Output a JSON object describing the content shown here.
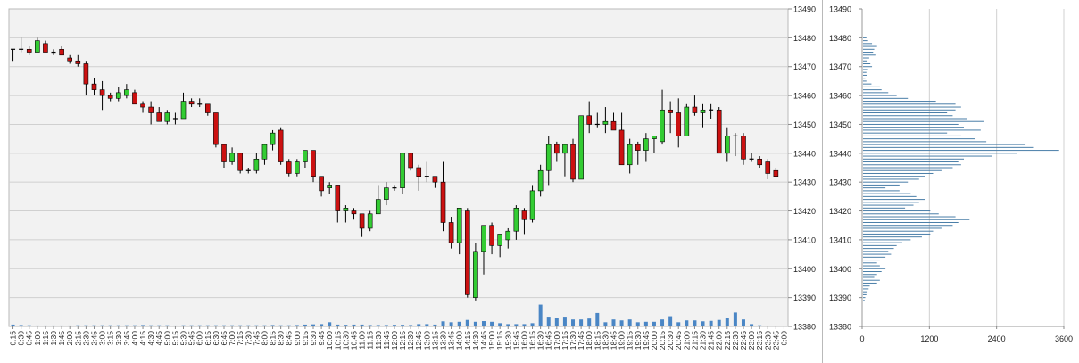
{
  "chart_data": [
    {
      "type": "candlestick",
      "ylim": [
        13380,
        13490
      ],
      "y_ticks": [
        "13490",
        "13480",
        "13470",
        "13460",
        "13450",
        "13440",
        "13430",
        "13420",
        "13410",
        "13400",
        "13390",
        "13380"
      ],
      "x_labels": [
        "0:15",
        "0:30",
        "0:45",
        "1:00",
        "1:15",
        "1:30",
        "1:45",
        "2:00",
        "2:15",
        "2:30",
        "2:45",
        "3:00",
        "3:15",
        "3:30",
        "3:45",
        "4:00",
        "4:15",
        "4:30",
        "4:45",
        "5:00",
        "5:15",
        "5:30",
        "5:45",
        "6:00",
        "6:15",
        "6:30",
        "6:45",
        "7:00",
        "7:15",
        "7:30",
        "7:45",
        "8:00",
        "8:15",
        "8:30",
        "8:45",
        "9:00",
        "9:15",
        "9:30",
        "9:45",
        "10:00",
        "10:15",
        "10:30",
        "10:45",
        "11:00",
        "11:15",
        "11:30",
        "11:45",
        "12:00",
        "12:15",
        "12:30",
        "12:45",
        "13:00",
        "13:15",
        "13:30",
        "13:45",
        "14:00",
        "14:15",
        "14:30",
        "14:45",
        "15:00",
        "15:15",
        "15:30",
        "15:45",
        "16:00",
        "16:15",
        "16:30",
        "16:45",
        "17:00",
        "17:15",
        "17:30",
        "17:45",
        "18:00",
        "18:15",
        "18:30",
        "18:45",
        "19:00",
        "19:15",
        "19:30",
        "19:45",
        "20:00",
        "20:15",
        "20:30",
        "20:45",
        "21:00",
        "21:15",
        "21:30",
        "21:45",
        "22:00",
        "22:15",
        "22:30",
        "22:45",
        "23:00",
        "23:15",
        "23:30",
        "23:45",
        "0:00"
      ],
      "candles": [
        [
          13476,
          13476,
          13472,
          13476
        ],
        [
          13476,
          13480,
          13475,
          13476
        ],
        [
          13476,
          13477,
          13474,
          13475
        ],
        [
          13475,
          13480,
          13475,
          13479
        ],
        [
          13478,
          13479,
          13476,
          13475
        ],
        [
          13475,
          13476,
          13474,
          13475
        ],
        [
          13476,
          13477,
          13474,
          13474
        ],
        [
          13473,
          13474,
          13471,
          13472
        ],
        [
          13472,
          13474,
          13470,
          13471
        ],
        [
          13471,
          13472,
          13460,
          13464
        ],
        [
          13464,
          13466,
          13460,
          13462
        ],
        [
          13462,
          13465,
          13455,
          13460
        ],
        [
          13460,
          13461,
          13458,
          13459
        ],
        [
          13459,
          13463,
          13458,
          13461
        ],
        [
          13460,
          13464,
          13459,
          13462
        ],
        [
          13461,
          13462,
          13457,
          13457
        ],
        [
          13457,
          13458,
          13454,
          13456
        ],
        [
          13456,
          13458,
          13450,
          13454
        ],
        [
          13454,
          13456,
          13451,
          13451
        ],
        [
          13451,
          13455,
          13450,
          13454
        ],
        [
          13452,
          13454,
          13450,
          13452
        ],
        [
          13452,
          13461,
          13452,
          13458
        ],
        [
          13458,
          13459,
          13456,
          13457
        ],
        [
          13457,
          13459,
          13456,
          13457
        ],
        [
          13457,
          13457,
          13453,
          13454
        ],
        [
          13454,
          13454,
          13442,
          13443
        ],
        [
          13443,
          13443,
          13435,
          13437
        ],
        [
          13437,
          13442,
          13436,
          13440
        ],
        [
          13440,
          13440,
          13433,
          13434
        ],
        [
          13434,
          13435,
          13433,
          13434
        ],
        [
          13434,
          13440,
          13433,
          13438
        ],
        [
          13438,
          13443,
          13436,
          13443
        ],
        [
          13443,
          13448,
          13441,
          13447
        ],
        [
          13448,
          13449,
          13436,
          13437
        ],
        [
          13437,
          13438,
          13432,
          13433
        ],
        [
          13433,
          13438,
          13432,
          13437
        ],
        [
          13437,
          13441,
          13435,
          13441
        ],
        [
          13441,
          13441,
          13430,
          13432
        ],
        [
          13432,
          13432,
          13425,
          13427
        ],
        [
          13428,
          13430,
          13426,
          13429
        ],
        [
          13429,
          13429,
          13416,
          13420
        ],
        [
          13420,
          13422,
          13416,
          13421
        ],
        [
          13420,
          13421,
          13417,
          13419
        ],
        [
          13419,
          13419,
          13411,
          13414
        ],
        [
          13414,
          13420,
          13413,
          13419
        ],
        [
          13419,
          13429,
          13419,
          13424
        ],
        [
          13424,
          13430,
          13422,
          13428
        ],
        [
          13428,
          13429,
          13427,
          13428
        ],
        [
          13428,
          13440,
          13426,
          13440
        ],
        [
          13440,
          13440,
          13434,
          13435
        ],
        [
          13435,
          13436,
          13427,
          13432
        ],
        [
          13432,
          13437,
          13430,
          13432
        ],
        [
          13432,
          13432,
          13428,
          13430
        ],
        [
          13430,
          13437,
          13413,
          13416
        ],
        [
          13416,
          13418,
          13407,
          13409
        ],
        [
          13409,
          13421,
          13405,
          13421
        ],
        [
          13420,
          13421,
          13390,
          13391
        ],
        [
          13390,
          13409,
          13389,
          13406
        ],
        [
          13406,
          13415,
          13398,
          13415
        ],
        [
          13415,
          13416,
          13405,
          13408
        ],
        [
          13408,
          13411,
          13404,
          13412
        ],
        [
          13410,
          13414,
          13407,
          13413
        ],
        [
          13413,
          13422,
          13410,
          13421
        ],
        [
          13420,
          13421,
          13412,
          13417
        ],
        [
          13417,
          13429,
          13416,
          13427
        ],
        [
          13427,
          13436,
          13425,
          13434
        ],
        [
          13434,
          13446,
          13429,
          13443
        ],
        [
          13443,
          13444,
          13437,
          13440
        ],
        [
          13440,
          13443,
          13432,
          13443
        ],
        [
          13443,
          13445,
          13430,
          13431
        ],
        [
          13431,
          13453,
          13431,
          13453
        ],
        [
          13453,
          13458,
          13447,
          13450
        ],
        [
          13450,
          13454,
          13449,
          13450
        ],
        [
          13450,
          13456,
          13447,
          13451
        ],
        [
          13451,
          13454,
          13449,
          13448
        ],
        [
          13448,
          13454,
          13437,
          13436
        ],
        [
          13436,
          13445,
          13433,
          13443
        ],
        [
          13443,
          13444,
          13436,
          13441
        ],
        [
          13441,
          13447,
          13437,
          13445
        ],
        [
          13445,
          13446,
          13440,
          13446
        ],
        [
          13444,
          13462,
          13443,
          13455
        ],
        [
          13455,
          13458,
          13447,
          13454
        ],
        [
          13454,
          13459,
          13442,
          13446
        ],
        [
          13446,
          13457,
          13446,
          13456
        ],
        [
          13456,
          13460,
          13453,
          13454
        ],
        [
          13454,
          13457,
          13449,
          13455
        ],
        [
          13455,
          13457,
          13452,
          13455
        ],
        [
          13455,
          13456,
          13440,
          13440
        ],
        [
          13440,
          13449,
          13437,
          13446
        ],
        [
          13446,
          13447,
          13439,
          13446
        ],
        [
          13446,
          13447,
          13436,
          13438
        ],
        [
          13438,
          13440,
          13437,
          13438
        ],
        [
          13438,
          13439,
          13435,
          13436
        ],
        [
          13437,
          13438,
          13431,
          13433
        ],
        [
          13434,
          13435,
          13432,
          13432
        ]
      ],
      "volume": [
        0,
        0,
        0,
        0,
        0,
        0,
        0,
        0,
        0,
        0,
        0,
        0,
        0,
        0,
        0,
        0,
        0,
        0,
        0,
        0,
        0,
        0,
        0,
        0,
        0,
        0,
        0,
        0,
        0,
        0,
        0,
        0,
        0,
        0,
        0,
        0,
        0,
        0,
        0,
        0,
        0,
        0,
        0,
        0,
        0,
        0,
        0,
        0,
        0,
        0,
        0,
        0,
        0,
        0,
        0,
        0,
        0,
        0,
        0,
        0,
        0,
        0,
        0,
        0,
        0,
        0,
        0,
        0,
        0,
        0,
        0,
        0,
        0,
        0,
        0,
        0,
        0,
        0,
        0,
        0,
        0,
        0,
        0,
        0,
        0,
        0,
        0,
        0,
        0,
        0,
        0,
        0,
        0,
        0,
        0,
        0
      ],
      "volume_height_frac": [
        0.08,
        0.06,
        0.05,
        0.04,
        0.04,
        0.04,
        0.04,
        0.04,
        0.05,
        0.05,
        0.05,
        0.05,
        0.05,
        0.05,
        0.05,
        0.05,
        0.06,
        0.05,
        0.05,
        0.05,
        0.04,
        0.05,
        0.05,
        0.05,
        0.05,
        0.05,
        0.05,
        0.05,
        0.05,
        0.05,
        0.05,
        0.05,
        0.06,
        0.05,
        0.05,
        0.06,
        0.08,
        0.09,
        0.1,
        0.18,
        0.08,
        0.07,
        0.08,
        0.08,
        0.06,
        0.06,
        0.06,
        0.07,
        0.07,
        0.06,
        0.1,
        0.1,
        0.08,
        0.22,
        0.18,
        0.2,
        0.28,
        0.2,
        0.23,
        0.2,
        0.14,
        0.1,
        0.1,
        0.1,
        0.14,
        0.94,
        0.42,
        0.38,
        0.42,
        0.3,
        0.3,
        0.34,
        0.58,
        0.18,
        0.3,
        0.26,
        0.3,
        0.18,
        0.2,
        0.2,
        0.3,
        0.44,
        0.18,
        0.26,
        0.26,
        0.22,
        0.24,
        0.28,
        0.36,
        0.6,
        0.3,
        0.1,
        0.05,
        0.03,
        0.02,
        0.02
      ],
      "colors": {
        "up": "#33cc33",
        "down": "#cc1111",
        "volume": "#4a86c5",
        "grid": "#d0d0d0",
        "plot_bg": "#f2f2f2"
      }
    },
    {
      "type": "bar",
      "orientation": "horizontal",
      "ylim": [
        13380,
        13490
      ],
      "y_ticks": [
        "13490",
        "13480",
        "13470",
        "13460",
        "13450",
        "13440",
        "13430",
        "13420",
        "13410",
        "13400",
        "13390",
        "13380"
      ],
      "xlim": [
        0,
        3600
      ],
      "x_ticks": [
        "0",
        "1200",
        "2400",
        "3600"
      ],
      "levels": [
        13480,
        13479,
        13478,
        13477,
        13476,
        13475,
        13474,
        13473,
        13472,
        13471,
        13470,
        13469,
        13468,
        13467,
        13466,
        13465,
        13464,
        13463,
        13462,
        13461,
        13460,
        13459,
        13458,
        13457,
        13456,
        13455,
        13454,
        13453,
        13452,
        13451,
        13450,
        13449,
        13448,
        13447,
        13446,
        13445,
        13444,
        13443,
        13442,
        13441,
        13440,
        13439,
        13438,
        13437,
        13436,
        13435,
        13434,
        13433,
        13432,
        13431,
        13430,
        13429,
        13428,
        13427,
        13426,
        13425,
        13424,
        13423,
        13422,
        13421,
        13420,
        13419,
        13418,
        13417,
        13416,
        13415,
        13414,
        13413,
        13412,
        13411,
        13410,
        13409,
        13408,
        13407,
        13406,
        13405,
        13404,
        13403,
        13402,
        13401,
        13400,
        13399,
        13398,
        13397,
        13396,
        13395,
        13394,
        13393,
        13392,
        13391,
        13390,
        13389
      ],
      "values": [
        60,
        90,
        160,
        250,
        200,
        180,
        220,
        110,
        80,
        130,
        160,
        90,
        60,
        70,
        40,
        60,
        150,
        300,
        330,
        450,
        600,
        800,
        1300,
        1650,
        1750,
        1650,
        1500,
        1600,
        1850,
        2150,
        1700,
        1800,
        2100,
        1500,
        1750,
        2000,
        2200,
        2900,
        3050,
        3500,
        2750,
        2300,
        1800,
        1700,
        1750,
        1600,
        1400,
        1250,
        1100,
        1000,
        800,
        650,
        400,
        650,
        850,
        950,
        1100,
        1000,
        900,
        750,
        1200,
        1350,
        1650,
        1900,
        1700,
        1600,
        1400,
        1250,
        1200,
        1050,
        850,
        700,
        600,
        550,
        450,
        500,
        400,
        300,
        250,
        300,
        400,
        330,
        250,
        200,
        300,
        250,
        120,
        100,
        80,
        60,
        40,
        30
      ],
      "color": "#4a7ea8"
    }
  ]
}
